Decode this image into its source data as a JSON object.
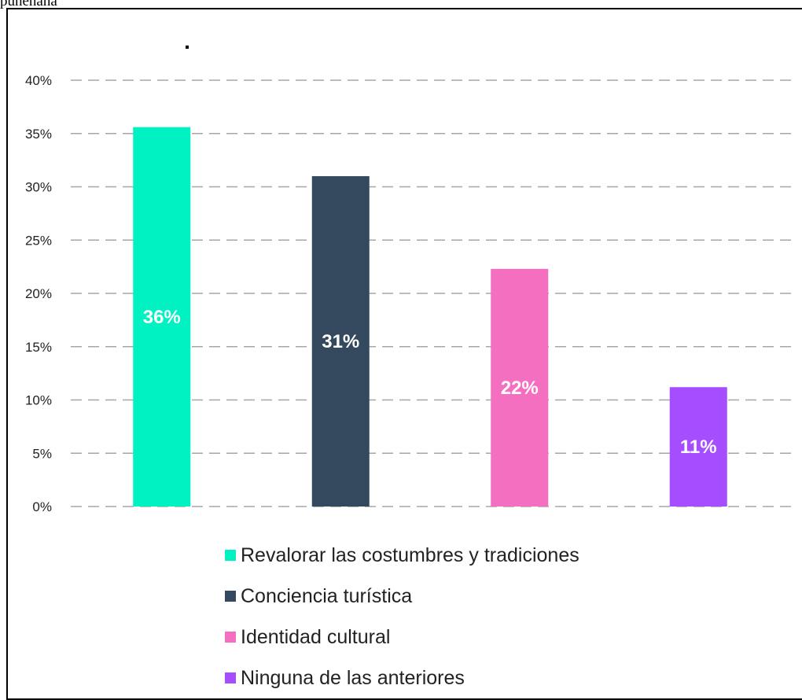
{
  "page": {
    "cut_caption": "puneñana"
  },
  "chart_data": {
    "type": "bar",
    "title": ".",
    "xlabel": "",
    "ylabel": "",
    "ylim": [
      0,
      0.4
    ],
    "grid": true,
    "legend_position": "bottom",
    "yticks": [
      "0%",
      "5%",
      "10%",
      "15%",
      "20%",
      "25%",
      "30%",
      "35%",
      "40%"
    ],
    "categories": [
      "Revalorar las costumbres y tradiciones",
      "Conciencia turística",
      "Identidad cultural",
      "Ninguna de las anteriores"
    ],
    "values": [
      0.356,
      0.31,
      0.223,
      0.112
    ],
    "data_labels": [
      "36%",
      "31%",
      "22%",
      "11%"
    ],
    "colors": [
      "#00F2C3",
      "#34495E",
      "#F46FC0",
      "#A64DFF"
    ]
  }
}
